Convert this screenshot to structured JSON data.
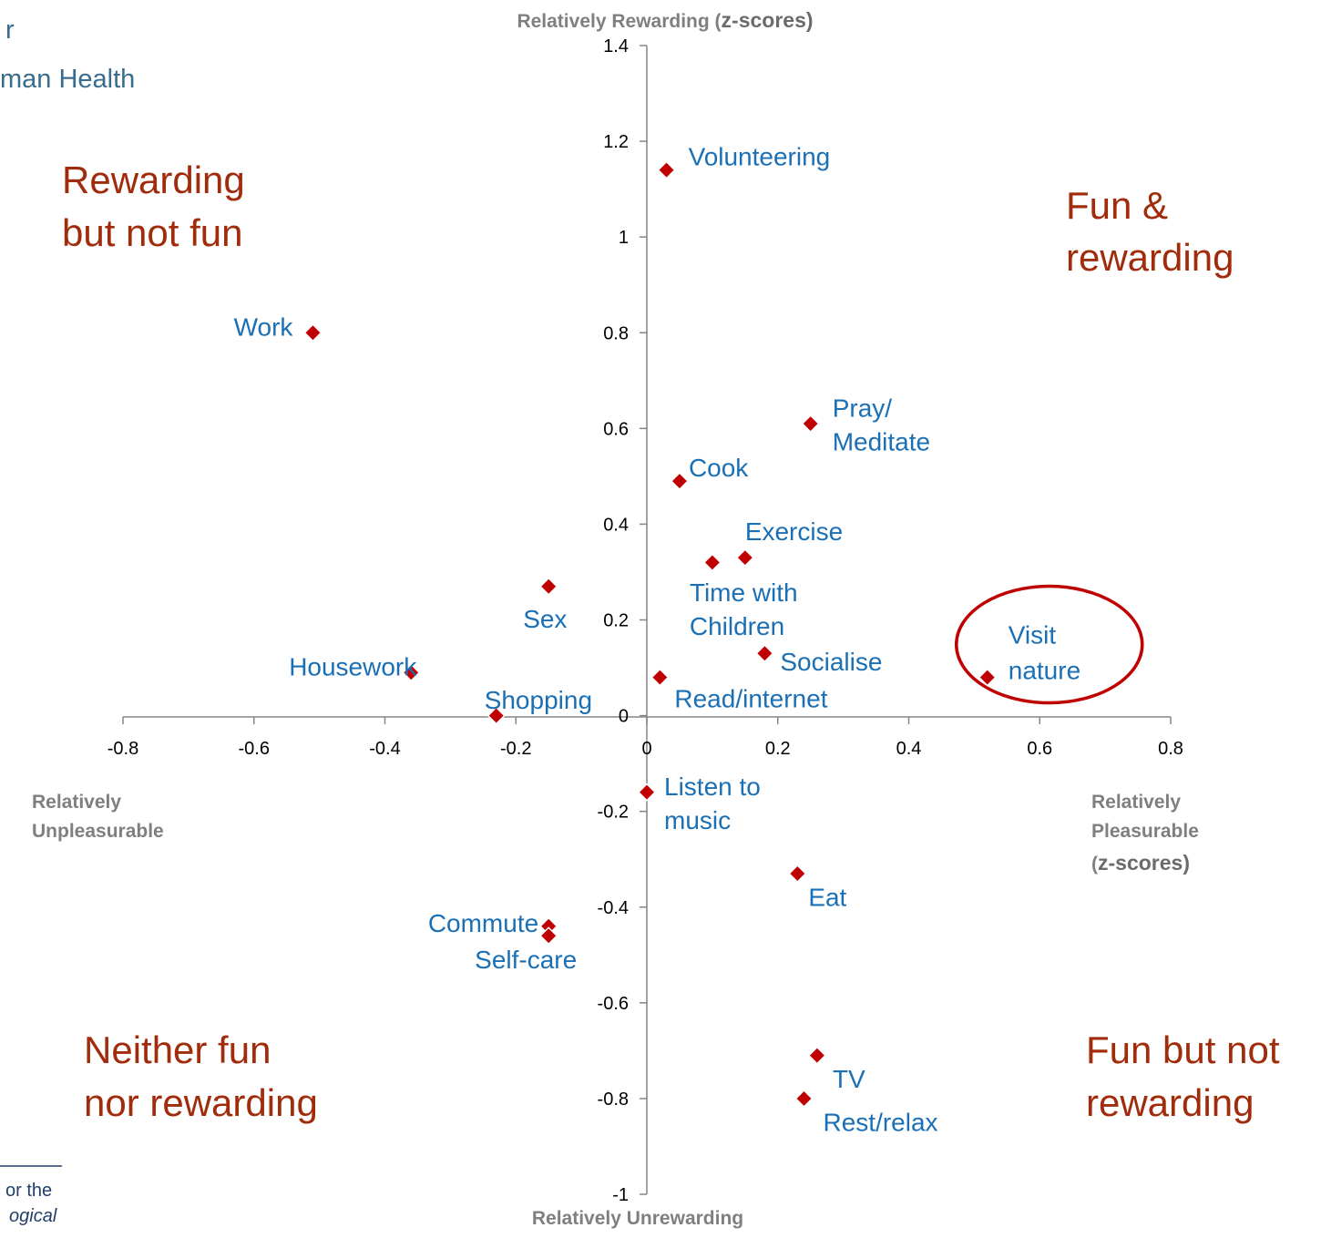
{
  "chart_data": {
    "type": "scatter",
    "xlim": [
      -0.8,
      0.8
    ],
    "ylim": [
      -1,
      1.4
    ],
    "x_ticks": [
      "-0.8",
      "-0.6",
      "-0.4",
      "-0.2",
      "0",
      "0.2",
      "0.4",
      "0.6",
      "0.8"
    ],
    "y_ticks": [
      "1.4",
      "1.2",
      "1",
      "0.8",
      "0.6",
      "0.4",
      "0.2",
      "0",
      "-0.2",
      "-0.4",
      "-0.6",
      "-0.8",
      "-1"
    ],
    "x_tick_values": [
      -0.8,
      -0.6,
      -0.4,
      -0.2,
      0,
      0.2,
      0.4,
      0.6,
      0.8
    ],
    "y_tick_values": [
      1.4,
      1.2,
      1,
      0.8,
      0.6,
      0.4,
      0.2,
      0,
      -0.2,
      -0.4,
      -0.6,
      -0.8,
      -1
    ],
    "grid": false,
    "marker_color": "#c00000",
    "label_color": "#1a6fb5",
    "points": [
      {
        "label": "Volunteering",
        "x": 0.03,
        "y": 1.14
      },
      {
        "label": "Work",
        "x": -0.51,
        "y": 0.8
      },
      {
        "label": "Pray/\nMeditate",
        "x": 0.25,
        "y": 0.61
      },
      {
        "label": "Cook",
        "x": 0.05,
        "y": 0.49
      },
      {
        "label": "Exercise",
        "x": 0.15,
        "y": 0.33
      },
      {
        "label": "Time with\nChildren",
        "x": 0.1,
        "y": 0.32
      },
      {
        "label": "Sex",
        "x": -0.15,
        "y": 0.27
      },
      {
        "label": "Socialise",
        "x": 0.18,
        "y": 0.13
      },
      {
        "label": "Housework",
        "x": -0.36,
        "y": 0.09
      },
      {
        "label": "Visit\nnature",
        "x": 0.52,
        "y": 0.08
      },
      {
        "label": "Read/internet",
        "x": 0.02,
        "y": 0.08
      },
      {
        "label": "Shopping",
        "x": -0.23,
        "y": 0.0
      },
      {
        "label": "Listen to\nmusic",
        "x": 0.0,
        "y": -0.16
      },
      {
        "label": "Eat",
        "x": 0.23,
        "y": -0.33
      },
      {
        "label": "Commute",
        "x": -0.15,
        "y": -0.44
      },
      {
        "label": "Self-care",
        "x": -0.15,
        "y": -0.46
      },
      {
        "label": "TV",
        "x": 0.26,
        "y": -0.71
      },
      {
        "label": "Rest/relax",
        "x": 0.24,
        "y": -0.8
      }
    ],
    "highlight": {
      "label": "Visit\nnature",
      "color": "#c00000"
    },
    "axis_titles": {
      "top": [
        "Relatively Rewarding (",
        "z-scores",
        ")"
      ],
      "bottom": "Relatively Unrewarding",
      "left": [
        "Relatively",
        "Unpleasurable"
      ],
      "right": [
        "Relatively",
        "Pleasurable",
        "(",
        "z-scores",
        ")"
      ]
    },
    "quadrants": {
      "top_left": [
        "Rewarding",
        "but not fun"
      ],
      "top_right": [
        "Fun &",
        "rewarding"
      ],
      "bottom_left": [
        "Neither fun",
        "nor rewarding"
      ],
      "bottom_right": [
        "Fun but not",
        "rewarding"
      ]
    }
  },
  "fragments": {
    "top_left": [
      "r",
      "man Health"
    ],
    "bottom_left": [
      "or the",
      "ogical"
    ]
  }
}
